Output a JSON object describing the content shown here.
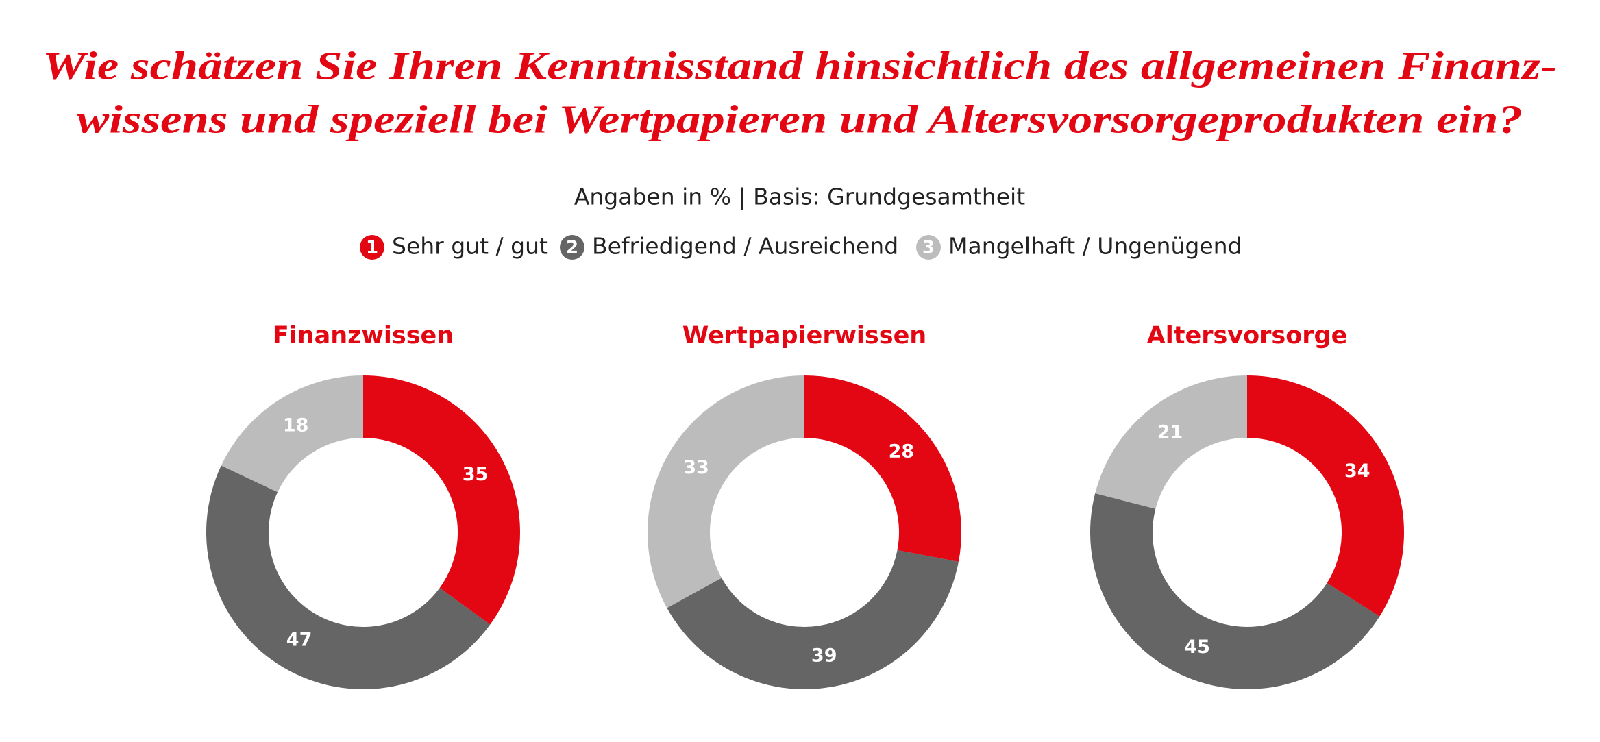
{
  "title": [
    "Wie schätzen Sie Ihren Kenntnisstand hinsichtlich des allgemeinen Finanz-",
    "wissens und speziell bei Wertpapieren und Altersvorsorgeprodukten ein?"
  ],
  "subtitle": "Angaben in % | Basis: Grundgesamtheit",
  "legend": {
    "markers": [
      "1",
      "2",
      "3"
    ]
  },
  "chart_data": [
    {
      "type": "donut",
      "title": "Finanzwissen",
      "categories": [
        "Sehr gut / gut",
        "Befriedigend / Ausreichend",
        "Mangelhaft / Ungenügend"
      ],
      "values": [
        35,
        47,
        18
      ],
      "colors": [
        "#e30613",
        "#646564",
        "#bbbcbb"
      ]
    },
    {
      "type": "donut",
      "title": "Wertpapierwissen",
      "categories": [
        "Sehr gut / gut",
        "Befriedigend / Ausreichend",
        "Mangelhaft / Ungenügend"
      ],
      "values": [
        28,
        39,
        33
      ],
      "colors": [
        "#e30613",
        "#646564",
        "#bbbcbb"
      ]
    },
    {
      "type": "donut",
      "title": "Altersvorsorge",
      "categories": [
        "Sehr gut / gut",
        "Befriedigend / Ausreichend",
        "Mangelhaft / Ungenügend"
      ],
      "values": [
        34,
        45,
        21
      ],
      "colors": [
        "#e30613",
        "#646564",
        "#bbbcbb"
      ]
    }
  ]
}
